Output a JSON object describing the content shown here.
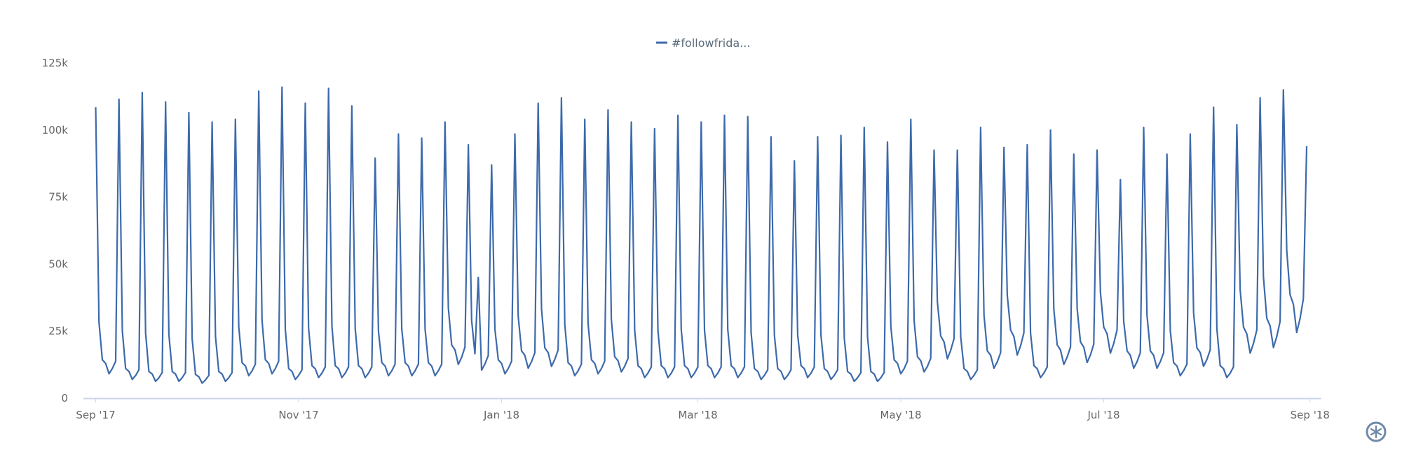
{
  "chart_data": {
    "type": "line",
    "title": "",
    "xlabel": "",
    "ylabel": "",
    "legend": {
      "position": "top-center",
      "entries": [
        "#followfrida..."
      ]
    },
    "series_color": "#3d6aab",
    "ylim": [
      0,
      125000
    ],
    "y_ticks": [
      "0",
      "25k",
      "50k",
      "75k",
      "100k",
      "125k"
    ],
    "y_tick_values": [
      0,
      25000,
      50000,
      75000,
      100000,
      125000
    ],
    "x_ticks": [
      "Sep '17",
      "Nov '17",
      "Jan '18",
      "Mar '18",
      "May '18",
      "Jul '18",
      "Sep '18"
    ],
    "x_tick_dates": [
      "2017-09-01",
      "2017-11-01",
      "2018-01-01",
      "2018-03-01",
      "2018-05-01",
      "2018-07-01",
      "2018-09-01"
    ],
    "x_range": [
      "2017-09-01",
      "2018-09-01"
    ],
    "grid": false,
    "series": [
      {
        "name": "#followfrida...",
        "start_date": "2017-09-01",
        "interval_days": 7,
        "weekly_peak_friday": [
          108500,
          111500,
          114000,
          110500,
          106500,
          103000,
          104000,
          114500,
          116000,
          110000,
          115500,
          109000,
          89500,
          98500,
          97000,
          103000,
          94500,
          87000,
          98500,
          110000,
          112000,
          104000,
          107500,
          103000,
          100500,
          105500,
          103000,
          105500,
          105000,
          97500,
          88500,
          97500,
          98000,
          101000,
          95500,
          104000,
          92500,
          92500,
          101000,
          93500,
          94500,
          100000,
          91000,
          92500,
          81500,
          101000,
          91000,
          98500,
          108500,
          102000,
          112000,
          115000,
          94000
        ],
        "weekly_low": [
          13000,
          10000,
          9000,
          9000,
          8000,
          9000,
          12000,
          13000,
          10000,
          11000,
          11000,
          11000,
          12000,
          12000,
          12000,
          18000,
          15000,
          13000,
          16000,
          17000,
          12000,
          13000,
          14000,
          11000,
          11000,
          11000,
          11000,
          11000,
          10000,
          10000,
          11000,
          10000,
          9000,
          9000,
          13000,
          14000,
          21000,
          10000,
          16000,
          23000,
          11000,
          18000,
          19000,
          24000,
          16000,
          16000,
          12000,
          17000,
          11000,
          24000,
          27000,
          35000,
          20000
        ],
        "extra_points": [
          {
            "date": "2017-12-25",
            "value": 45000
          }
        ]
      }
    ]
  },
  "branding": {
    "logo": "asterisk-circle-logo"
  }
}
